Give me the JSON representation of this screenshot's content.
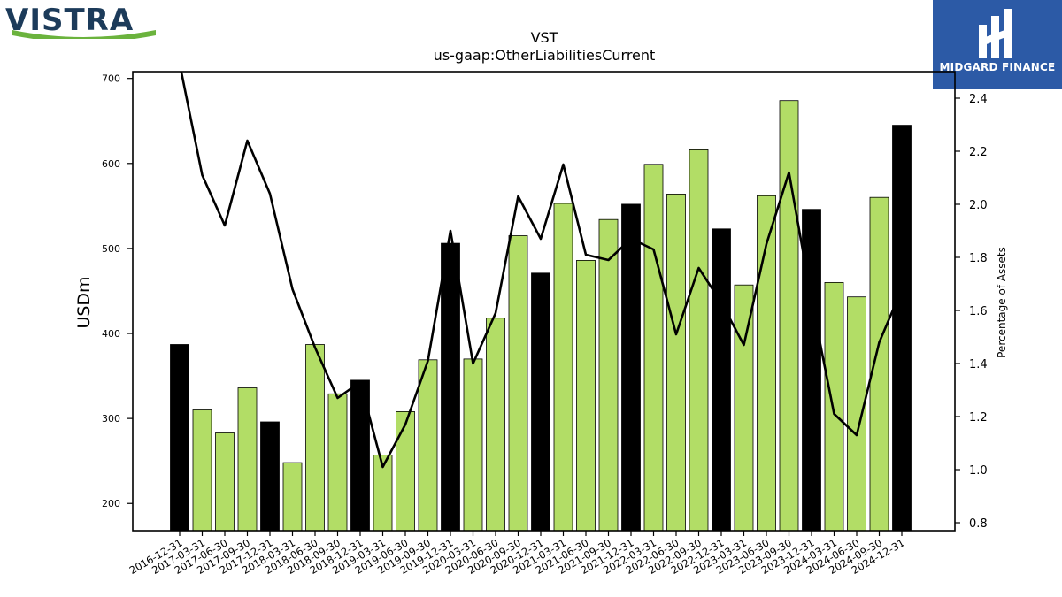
{
  "logos": {
    "left_text": "VISTRA",
    "right_text": "MIDGARD FINANCE"
  },
  "chart_data": {
    "type": "bar",
    "title": "VST",
    "subtitle": "us-gaap:OtherLiabilitiesCurrent",
    "ylabel": "USDm",
    "y2label": "Percentage of Assets",
    "ylim": [
      168,
      708
    ],
    "y2lim": [
      0.77,
      2.5
    ],
    "yticks": [
      200,
      300,
      400,
      500,
      600,
      700
    ],
    "y2ticks": [
      0.8,
      1.0,
      1.2,
      1.4,
      1.6,
      1.8,
      2.0,
      2.2,
      2.4
    ],
    "categories": [
      "2016-12-31",
      "2017-03-31",
      "2017-06-30",
      "2017-09-30",
      "2017-12-31",
      "2018-03-31",
      "2018-06-30",
      "2018-09-30",
      "2018-12-31",
      "2019-03-31",
      "2019-06-30",
      "2019-09-30",
      "2019-12-31",
      "2020-03-31",
      "2020-06-30",
      "2020-09-30",
      "2020-12-31",
      "2021-03-31",
      "2021-06-30",
      "2021-09-30",
      "2021-12-31",
      "2022-03-31",
      "2022-06-30",
      "2022-09-30",
      "2022-12-31",
      "2023-03-31",
      "2023-06-30",
      "2023-09-30",
      "2023-12-31",
      "2024-03-31",
      "2024-06-30",
      "2024-09-30",
      "2024-12-31"
    ],
    "series": [
      {
        "kind": "bar",
        "values": [
          387,
          310,
          283,
          336,
          296,
          248,
          387,
          329,
          345,
          257,
          308,
          369,
          506,
          370,
          418,
          515,
          471,
          553,
          486,
          534,
          552,
          599,
          564,
          616,
          523,
          457,
          562,
          674,
          546,
          460,
          443,
          560,
          645
        ],
        "color_annual": "#000000",
        "color_quarter": "#b2dd66",
        "annual_flags": [
          true,
          false,
          false,
          false,
          true,
          false,
          false,
          false,
          true,
          false,
          false,
          false,
          true,
          false,
          false,
          false,
          true,
          false,
          false,
          false,
          true,
          false,
          false,
          false,
          true,
          false,
          false,
          false,
          true,
          false,
          false,
          false,
          true
        ]
      },
      {
        "kind": "line",
        "axis": "right",
        "color": "#000000",
        "values": [
          2.53,
          2.11,
          1.92,
          2.24,
          2.04,
          1.68,
          1.46,
          1.27,
          1.33,
          1.01,
          1.17,
          1.41,
          1.9,
          1.4,
          1.59,
          2.03,
          1.87,
          2.15,
          1.81,
          1.79,
          1.87,
          1.83,
          1.51,
          1.76,
          1.63,
          1.47,
          1.85,
          2.12,
          1.64,
          1.21,
          1.13,
          1.48,
          1.68
        ]
      }
    ]
  }
}
